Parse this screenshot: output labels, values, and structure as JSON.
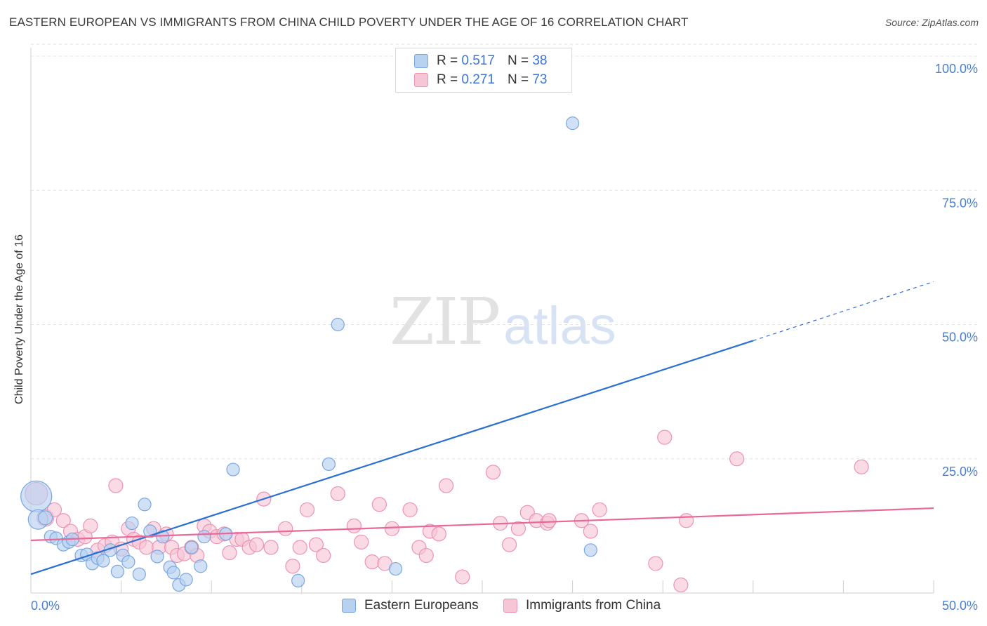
{
  "header": {
    "title": "EASTERN EUROPEAN VS IMMIGRANTS FROM CHINA CHILD POVERTY UNDER THE AGE OF 16 CORRELATION CHART",
    "source": "Source: ZipAtlas.com"
  },
  "watermark": {
    "zip": "ZIP",
    "atlas": "atlas"
  },
  "legend": {
    "r_label": "R = ",
    "n_label": "N = ",
    "series1": {
      "r": "0.517",
      "n": "38"
    },
    "series2": {
      "r": "0.271",
      "n": "73"
    }
  },
  "bottom_legend": {
    "series1": "Eastern Europeans",
    "series2": "Immigrants from China"
  },
  "colors": {
    "blue_fill": "#b7d1f1",
    "blue_stroke": "#7aa6e0",
    "blue_line": "#2a6fd2",
    "pink_fill": "#f7c6d6",
    "pink_stroke": "#ec93b2",
    "pink_line": "#e8689a",
    "tick_text": "#4a7fd0"
  },
  "chart_data": {
    "type": "scatter",
    "title": "EASTERN EUROPEAN VS IMMIGRANTS FROM CHINA CHILD POVERTY UNDER THE AGE OF 16 CORRELATION CHART",
    "xlabel": "",
    "ylabel": "Child Poverty Under the Age of 16",
    "xlim": [
      0,
      50
    ],
    "ylim": [
      0,
      100
    ],
    "x_tick_labels": [
      "0.0%",
      "50.0%"
    ],
    "y_ticks": [
      25,
      50,
      75,
      100
    ],
    "y_tick_labels": [
      "25.0%",
      "50.0%",
      "75.0%",
      "100.0%"
    ],
    "grid": true,
    "series": [
      {
        "name": "Eastern Europeans",
        "color": "#b7d1f1",
        "r": 0.517,
        "n": 38,
        "trend": {
          "x0": 0,
          "y0": 3.5,
          "x1": 40,
          "y1": 47,
          "dash_to_x": 50,
          "dash_to_y": 58
        },
        "points": [
          [
            0.3,
            18,
            22
          ],
          [
            0.4,
            13.7,
            14
          ],
          [
            0.8,
            14,
            10
          ],
          [
            1.1,
            10.5,
            9
          ],
          [
            1.4,
            10.2,
            9
          ],
          [
            1.8,
            9,
            9
          ],
          [
            2.1,
            9.5,
            9
          ],
          [
            2.3,
            10,
            9
          ],
          [
            2.8,
            7,
            9
          ],
          [
            3.1,
            7.2,
            9
          ],
          [
            3.4,
            5.5,
            9
          ],
          [
            3.7,
            6.5,
            9
          ],
          [
            4.0,
            6,
            9
          ],
          [
            4.4,
            8,
            9
          ],
          [
            4.8,
            4,
            9
          ],
          [
            5.1,
            7,
            9
          ],
          [
            5.4,
            5.8,
            9
          ],
          [
            5.6,
            13,
            9
          ],
          [
            6.0,
            3.5,
            9
          ],
          [
            6.3,
            16.5,
            9
          ],
          [
            6.6,
            11.5,
            9
          ],
          [
            7.0,
            6.8,
            9
          ],
          [
            7.3,
            10.5,
            9
          ],
          [
            7.7,
            4.8,
            9
          ],
          [
            7.9,
            3.8,
            9
          ],
          [
            8.2,
            1.5,
            9
          ],
          [
            8.6,
            2.5,
            9
          ],
          [
            8.9,
            8.5,
            9
          ],
          [
            9.4,
            5,
            9
          ],
          [
            9.6,
            10.5,
            9
          ],
          [
            10.8,
            11,
            9
          ],
          [
            11.2,
            23,
            9
          ],
          [
            14.8,
            2.3,
            9
          ],
          [
            17.0,
            50,
            9
          ],
          [
            16.5,
            24,
            9
          ],
          [
            20.2,
            4.5,
            9
          ],
          [
            30.0,
            87.5,
            9
          ],
          [
            31.0,
            8,
            9
          ]
        ]
      },
      {
        "name": "Immigrants from China",
        "color": "#f7c6d6",
        "r": 0.271,
        "n": 73,
        "trend": {
          "x0": 0,
          "y0": 9.8,
          "x1": 50,
          "y1": 15.8
        },
        "points": [
          [
            0.3,
            18.5,
            16
          ],
          [
            0.8,
            14,
            12
          ],
          [
            1.3,
            15.5,
            10
          ],
          [
            1.8,
            13.5,
            10
          ],
          [
            2.2,
            11.5,
            10
          ],
          [
            2.6,
            10,
            10
          ],
          [
            3.0,
            10.5,
            10
          ],
          [
            3.3,
            12.5,
            10
          ],
          [
            3.7,
            8,
            10
          ],
          [
            4.1,
            8.8,
            10
          ],
          [
            4.5,
            9.5,
            10
          ],
          [
            4.7,
            20,
            10
          ],
          [
            5.0,
            8.2,
            10
          ],
          [
            5.4,
            12,
            10
          ],
          [
            5.7,
            10,
            10
          ],
          [
            6.0,
            9.5,
            10
          ],
          [
            6.4,
            8.5,
            10
          ],
          [
            6.8,
            12,
            10
          ],
          [
            7.1,
            8.5,
            10
          ],
          [
            7.5,
            11,
            10
          ],
          [
            7.8,
            8.5,
            10
          ],
          [
            8.1,
            7,
            10
          ],
          [
            8.5,
            7.3,
            10
          ],
          [
            8.9,
            8.5,
            10
          ],
          [
            9.2,
            7,
            10
          ],
          [
            9.6,
            12.5,
            10
          ],
          [
            9.9,
            11.5,
            10
          ],
          [
            10.3,
            10.5,
            10
          ],
          [
            10.7,
            11,
            10
          ],
          [
            11.0,
            7.5,
            10
          ],
          [
            11.4,
            10,
            10
          ],
          [
            11.7,
            10,
            10
          ],
          [
            12.1,
            8.5,
            10
          ],
          [
            12.5,
            9,
            10
          ],
          [
            12.9,
            17.5,
            10
          ],
          [
            13.3,
            8.5,
            10
          ],
          [
            14.1,
            12,
            10
          ],
          [
            14.5,
            5,
            10
          ],
          [
            14.9,
            8.5,
            10
          ],
          [
            15.3,
            15.5,
            10
          ],
          [
            15.8,
            9,
            10
          ],
          [
            16.2,
            7,
            10
          ],
          [
            17.0,
            18.5,
            10
          ],
          [
            17.9,
            12.5,
            10
          ],
          [
            18.3,
            9.5,
            10
          ],
          [
            18.9,
            5.8,
            10
          ],
          [
            19.3,
            16.5,
            10
          ],
          [
            19.6,
            5.5,
            10
          ],
          [
            20.0,
            12,
            10
          ],
          [
            21.0,
            15.5,
            10
          ],
          [
            21.5,
            8.5,
            10
          ],
          [
            21.9,
            7,
            10
          ],
          [
            22.1,
            11.5,
            10
          ],
          [
            22.6,
            11,
            10
          ],
          [
            23.0,
            20,
            10
          ],
          [
            23.9,
            3,
            10
          ],
          [
            25.6,
            22.5,
            10
          ],
          [
            26.0,
            13,
            10
          ],
          [
            26.5,
            9,
            10
          ],
          [
            27.0,
            12,
            10
          ],
          [
            27.5,
            15,
            10
          ],
          [
            28.0,
            13.5,
            10
          ],
          [
            28.6,
            13,
            10
          ],
          [
            28.7,
            13.5,
            10
          ],
          [
            30.5,
            13.5,
            10
          ],
          [
            31.0,
            11.5,
            10
          ],
          [
            31.5,
            15.5,
            10
          ],
          [
            34.6,
            5.5,
            10
          ],
          [
            35.1,
            29,
            10
          ],
          [
            36.0,
            1.5,
            10
          ],
          [
            36.3,
            13.5,
            10
          ],
          [
            39.1,
            25,
            10
          ],
          [
            46.0,
            23.5,
            10
          ]
        ]
      }
    ]
  }
}
